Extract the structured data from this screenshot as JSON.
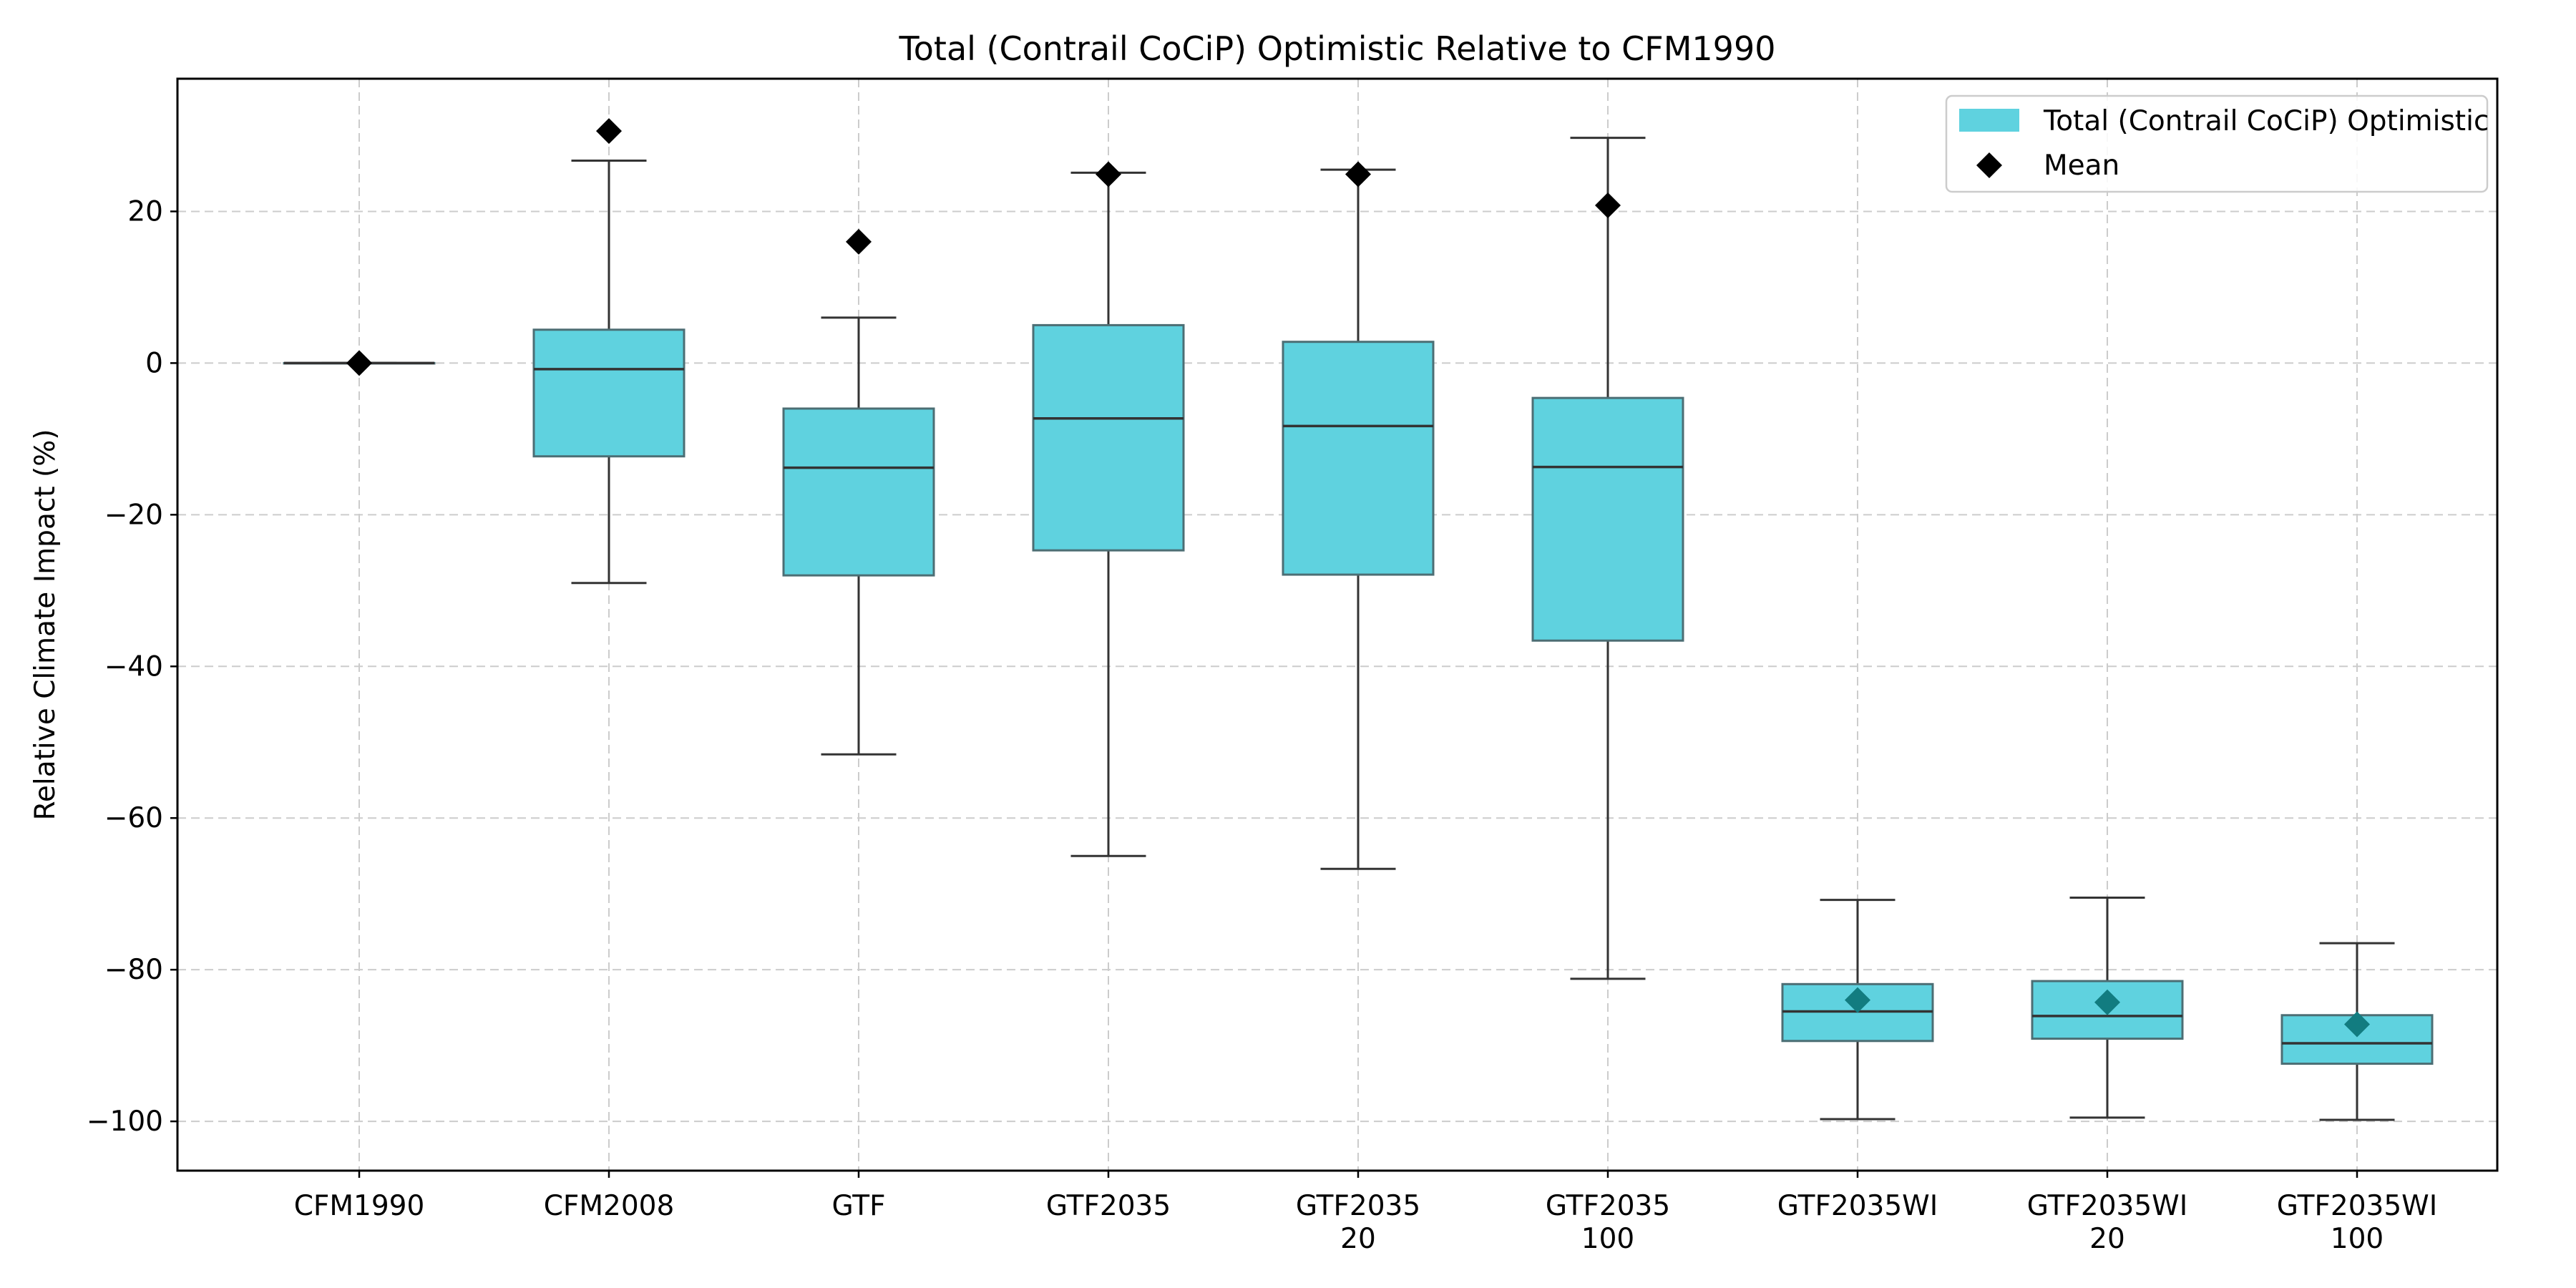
{
  "chart_data": {
    "type": "box",
    "title": "Total (Contrail CoCiP) Optimistic Relative to CFM1990",
    "xlabel": "",
    "ylabel": "Relative Climate Impact (%)",
    "ylim": [
      -106.5,
      37.5
    ],
    "yticks": [
      20,
      0,
      -20,
      -40,
      -60,
      -80,
      -100
    ],
    "ytick_labels": [
      "20",
      "0",
      "−20",
      "−40",
      "−60",
      "−80",
      "−100"
    ],
    "grid": true,
    "legend_position": "top-right",
    "legend": {
      "series_label": "Total (Contrail CoCiP) Optimistic",
      "mean_label": "Mean"
    },
    "colors": {
      "box_fill": "#5fd2df",
      "box_edge": "#4c6e74",
      "whisker": "#333333",
      "mean_marker": "#000000",
      "mean_marker_low": "#127c80",
      "grid": "#cccccc"
    },
    "categories": [
      {
        "label": [
          "CFM1990"
        ],
        "whisker_low": 0,
        "q1": 0,
        "median": 0,
        "q3": 0,
        "whisker_high": 0,
        "mean": 0
      },
      {
        "label": [
          "CFM2008"
        ],
        "whisker_low": -29,
        "q1": -12.3,
        "median": -0.8,
        "q3": 4.4,
        "whisker_high": 26.7,
        "mean": 30.6
      },
      {
        "label": [
          "GTF"
        ],
        "whisker_low": -51.6,
        "q1": -28,
        "median": -13.8,
        "q3": -6,
        "whisker_high": 6,
        "mean": 16
      },
      {
        "label": [
          "GTF2035"
        ],
        "whisker_low": -65,
        "q1": -24.7,
        "median": -7.3,
        "q3": 5,
        "whisker_high": 25.1,
        "mean": 24.9
      },
      {
        "label": [
          "GTF2035",
          "20"
        ],
        "whisker_low": -66.7,
        "q1": -27.9,
        "median": -8.3,
        "q3": 2.8,
        "whisker_high": 25.5,
        "mean": 24.9
      },
      {
        "label": [
          "GTF2035",
          "100"
        ],
        "whisker_low": -81.2,
        "q1": -36.6,
        "median": -13.7,
        "q3": -4.6,
        "whisker_high": 29.7,
        "mean": 20.8
      },
      {
        "label": [
          "GTF2035WI"
        ],
        "whisker_low": -99.7,
        "q1": -89.4,
        "median": -85.5,
        "q3": -81.9,
        "whisker_high": -70.8,
        "mean": -84
      },
      {
        "label": [
          "GTF2035WI",
          "20"
        ],
        "whisker_low": -99.5,
        "q1": -89.1,
        "median": -86.1,
        "q3": -81.5,
        "whisker_high": -70.5,
        "mean": -84.3
      },
      {
        "label": [
          "GTF2035WI",
          "100"
        ],
        "whisker_low": -99.8,
        "q1": -92.4,
        "median": -89.7,
        "q3": -86,
        "whisker_high": -76.5,
        "mean": -87.2
      }
    ]
  }
}
